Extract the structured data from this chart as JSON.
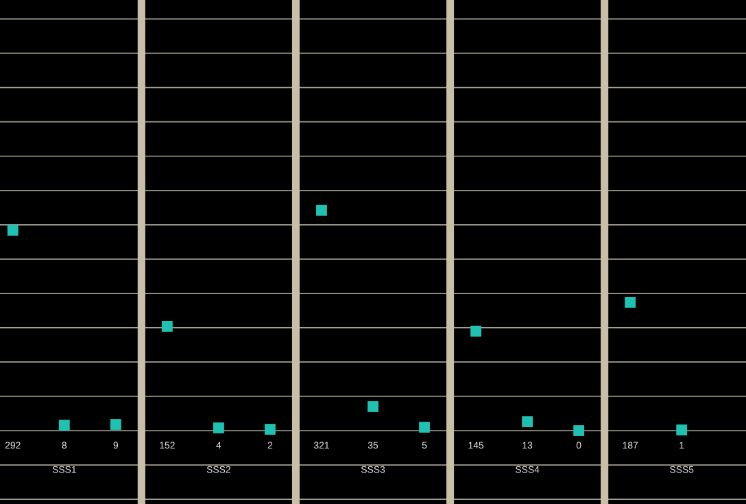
{
  "chart_data": {
    "type": "scatter",
    "categories": [
      null,
      "SSS1",
      null,
      null,
      "SSS2",
      null,
      null,
      "SSS3",
      null,
      null,
      "SSS4",
      null,
      null,
      "SSS5"
    ],
    "series": [
      {
        "color": "#1fc2b2",
        "values": [
          292,
          8,
          9,
          152,
          4,
          2,
          321,
          35,
          5,
          145,
          13,
          0,
          187,
          1
        ]
      }
    ],
    "marker": "square",
    "data_labels": true,
    "grid": true
  }
}
